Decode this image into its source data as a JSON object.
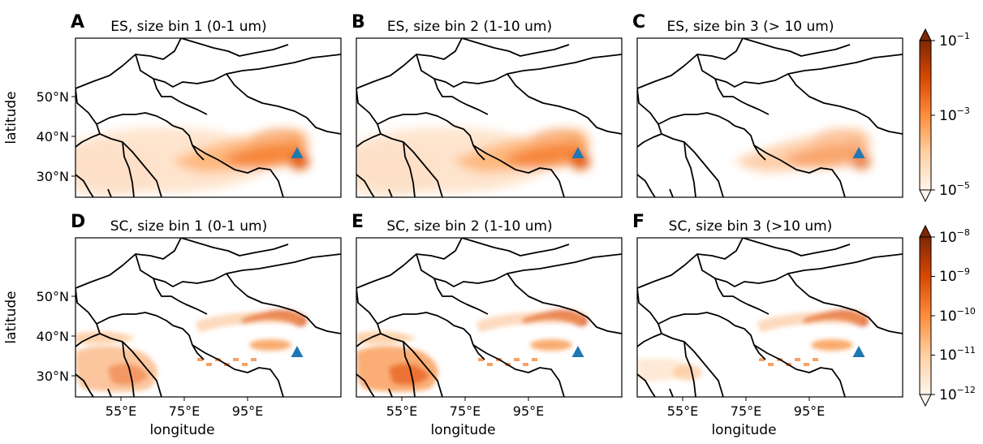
{
  "panels": [
    {
      "letter": "A",
      "title": "ES, size bin 1 (0-1 um)"
    },
    {
      "letter": "B",
      "title": "ES, size bin 2 (1-10 um)"
    },
    {
      "letter": "C",
      "title": "ES, size bin 3 (> 10 um)"
    },
    {
      "letter": "D",
      "title": "SC, size bin 1 (0-1 um)"
    },
    {
      "letter": "E",
      "title": "SC, size bin 2 (1-10 um)"
    },
    {
      "letter": "F",
      "title": "SC, size bin 3 (>10 um)"
    }
  ],
  "axes": {
    "ylabel": "latitude",
    "xlabel": "longitude",
    "lat_ticks": [
      "50°N",
      "40°N",
      "30°N"
    ],
    "lon_ticks": [
      "55°E",
      "75°E",
      "95°E"
    ]
  },
  "colorbars": {
    "es": {
      "base": "10",
      "exponents": [
        "−1",
        "−3",
        "−5"
      ],
      "range": [
        1e-05,
        0.1
      ],
      "scale": "log"
    },
    "sc": {
      "base": "10",
      "exponents": [
        "−8",
        "−9",
        "−10",
        "−11",
        "−12"
      ],
      "range": [
        1e-12,
        1e-08
      ],
      "scale": "log"
    }
  },
  "colormap": {
    "low": "#fff5eb",
    "mid": "#fd8d3c",
    "high": "#7f2704"
  },
  "marker": {
    "shape": "triangle",
    "color": "#1f77b4"
  }
}
